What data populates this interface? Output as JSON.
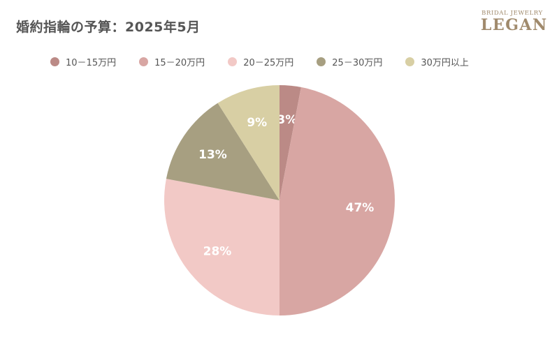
{
  "header": {
    "title": "婚約指輪の予算：2025年5月",
    "logo_top": "BRIDAL JEWELRY",
    "logo_main": "LEGAN"
  },
  "chart_data": {
    "type": "pie",
    "title": "婚約指輪の予算：2025年5月",
    "start_angle_deg": 0,
    "direction": "clockwise",
    "legend_position": "top",
    "slices": [
      {
        "label": "10－15万円",
        "value": 3,
        "value_label": "3%",
        "color": "#bb8a86"
      },
      {
        "label": "15－20万円",
        "value": 47,
        "value_label": "47%",
        "color": "#d8a6a3"
      },
      {
        "label": "20－25万円",
        "value": 28,
        "value_label": "28%",
        "color": "#f2c9c6"
      },
      {
        "label": "25－30万円",
        "value": 13,
        "value_label": "13%",
        "color": "#a79f81"
      },
      {
        "label": "30万円以上",
        "value": 9,
        "value_label": "9%",
        "color": "#d8cfa4"
      }
    ]
  }
}
